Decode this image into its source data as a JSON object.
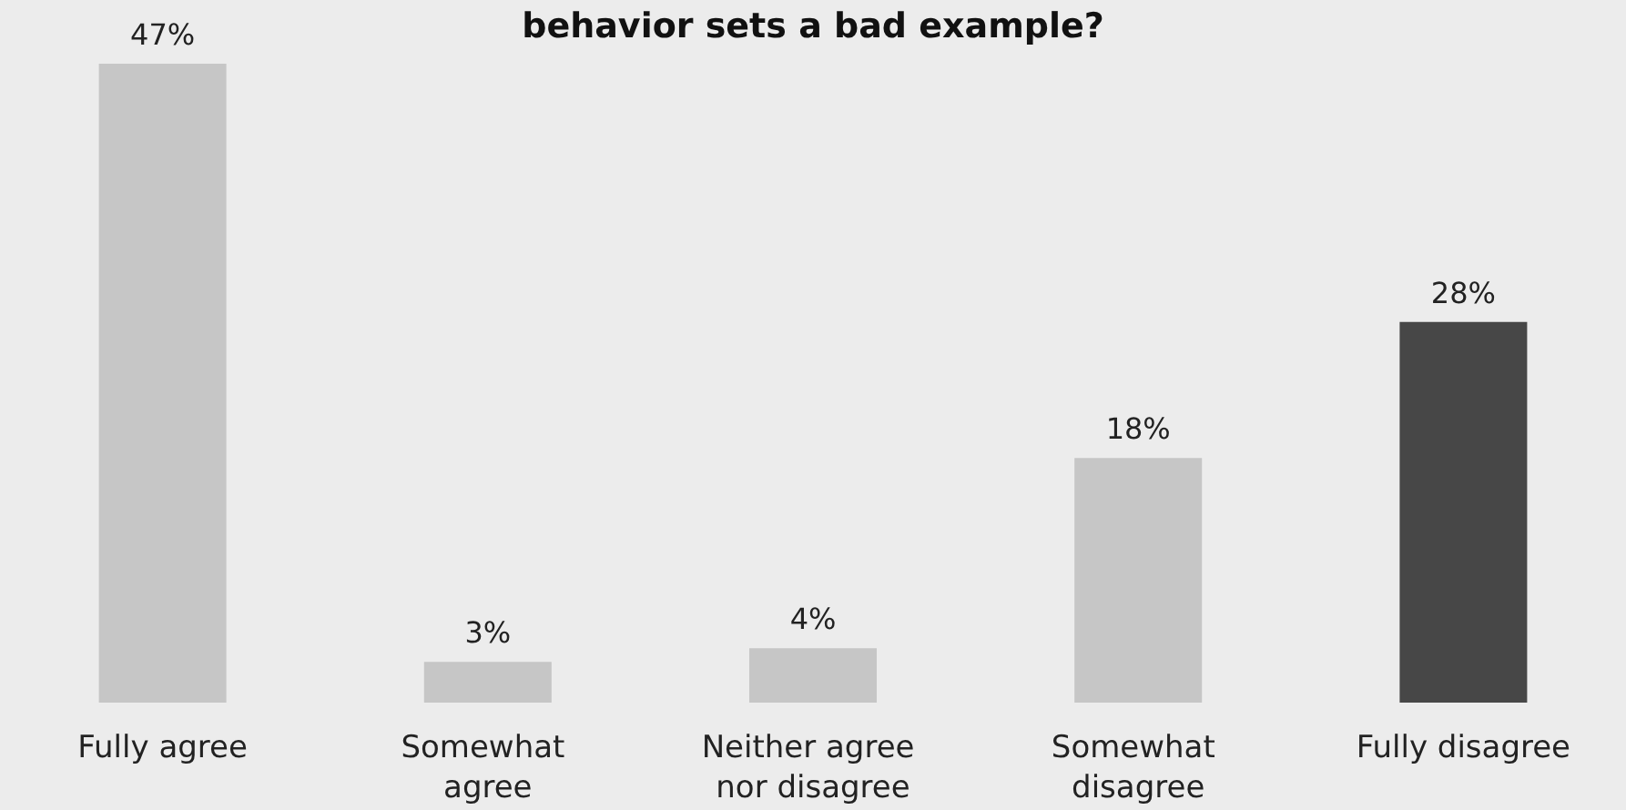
{
  "chart_data": {
    "type": "bar",
    "title": "behavior sets a bad example?",
    "categories": [
      "Fully agree",
      "Somewhat agree",
      "Neither agree nor disagree",
      "Somewhat disagree",
      "Fully disagree"
    ],
    "values": [
      47,
      3,
      4,
      18,
      28
    ],
    "value_labels": [
      "47%",
      "3%",
      "4%",
      "18%",
      "28%"
    ],
    "colors": [
      "#c6c6c6",
      "#c6c6c6",
      "#c6c6c6",
      "#c6c6c6",
      "#474747"
    ],
    "grid": false
  }
}
